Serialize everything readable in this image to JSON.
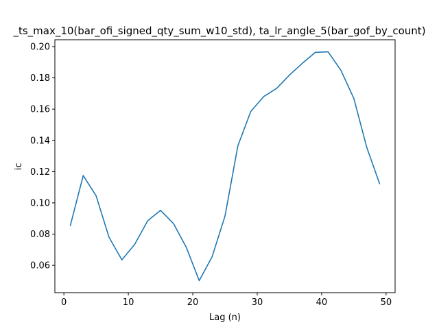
{
  "chart_data": {
    "type": "line",
    "title": "_ts_max_10(bar_ofi_signed_qty_sum_w10_std), ta_lr_angle_5(bar_gof_by_count)",
    "xlabel": "Lag (n)",
    "ylabel": "ic",
    "xlim": [
      -1.4,
      51.4
    ],
    "ylim": [
      0.0425,
      0.2044
    ],
    "xticks": [
      0,
      10,
      20,
      30,
      40,
      50
    ],
    "yticks": [
      0.06,
      0.08,
      0.1,
      0.12,
      0.14,
      0.16,
      0.18,
      0.2
    ],
    "ytick_labels": [
      "0.06",
      "0.08",
      "0.10",
      "0.12",
      "0.14",
      "0.16",
      "0.18",
      "0.20"
    ],
    "grid": false,
    "series": [
      {
        "color": "#1f77b4",
        "x": [
          1,
          3,
          5,
          7,
          9,
          11,
          13,
          15,
          17,
          19,
          21,
          23,
          25,
          27,
          29,
          31,
          33,
          35,
          37,
          39,
          41,
          43,
          45,
          47,
          49
        ],
        "y": [
          0.0855,
          0.1175,
          0.1045,
          0.078,
          0.0635,
          0.0735,
          0.0885,
          0.0952,
          0.0868,
          0.0715,
          0.0502,
          0.0655,
          0.0915,
          0.1365,
          0.1585,
          0.168,
          0.1732,
          0.1818,
          0.1893,
          0.1963,
          0.1967,
          0.1848,
          0.1668,
          0.1355,
          0.1122
        ]
      }
    ]
  }
}
